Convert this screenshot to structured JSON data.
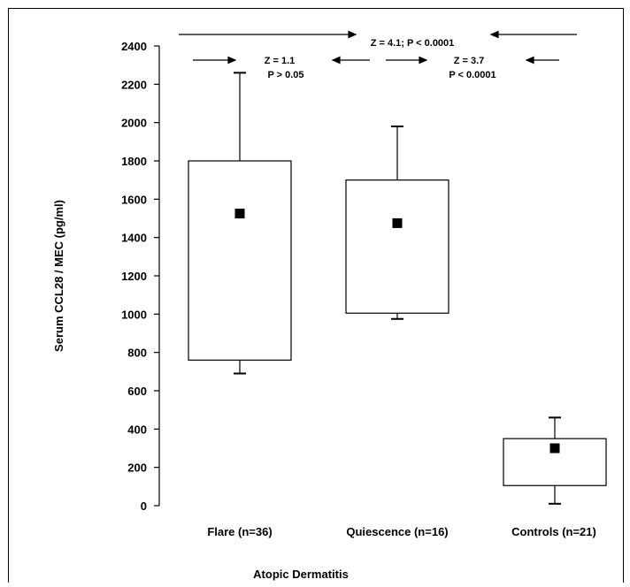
{
  "chart_data": {
    "type": "box",
    "ylabel": "Serum CCL28 / MEC (pg/ml)",
    "xlabel": "Atopic Dermatitis",
    "ylim": [
      0,
      2500
    ],
    "yticks": [
      0,
      200,
      400,
      600,
      800,
      1000,
      1200,
      1400,
      1600,
      1800,
      2000,
      2200,
      2400
    ],
    "categories": [
      "Flare (n=36)",
      "Quiescence (n=16)",
      "Controls (n=21)"
    ],
    "boxes": [
      {
        "whisker_low": 690,
        "q1": 760,
        "q3": 1800,
        "whisker_high": 2260,
        "mean": 1525
      },
      {
        "whisker_low": 975,
        "q1": 1005,
        "q3": 1700,
        "whisker_high": 1980,
        "mean": 1475
      },
      {
        "whisker_low": 10,
        "q1": 105,
        "q3": 350,
        "whisker_high": 460,
        "mean": 300
      }
    ],
    "annotations": {
      "top": "Z = 4.1; P < 0.0001",
      "left_z": "Z = 1.1",
      "left_p": "P > 0.05",
      "right_z": "Z = 3.7",
      "right_p": "P < 0.0001"
    },
    "colors": {
      "box_fill": "#ffffff",
      "stroke": "#000000",
      "mean_marker": "#000000"
    }
  }
}
